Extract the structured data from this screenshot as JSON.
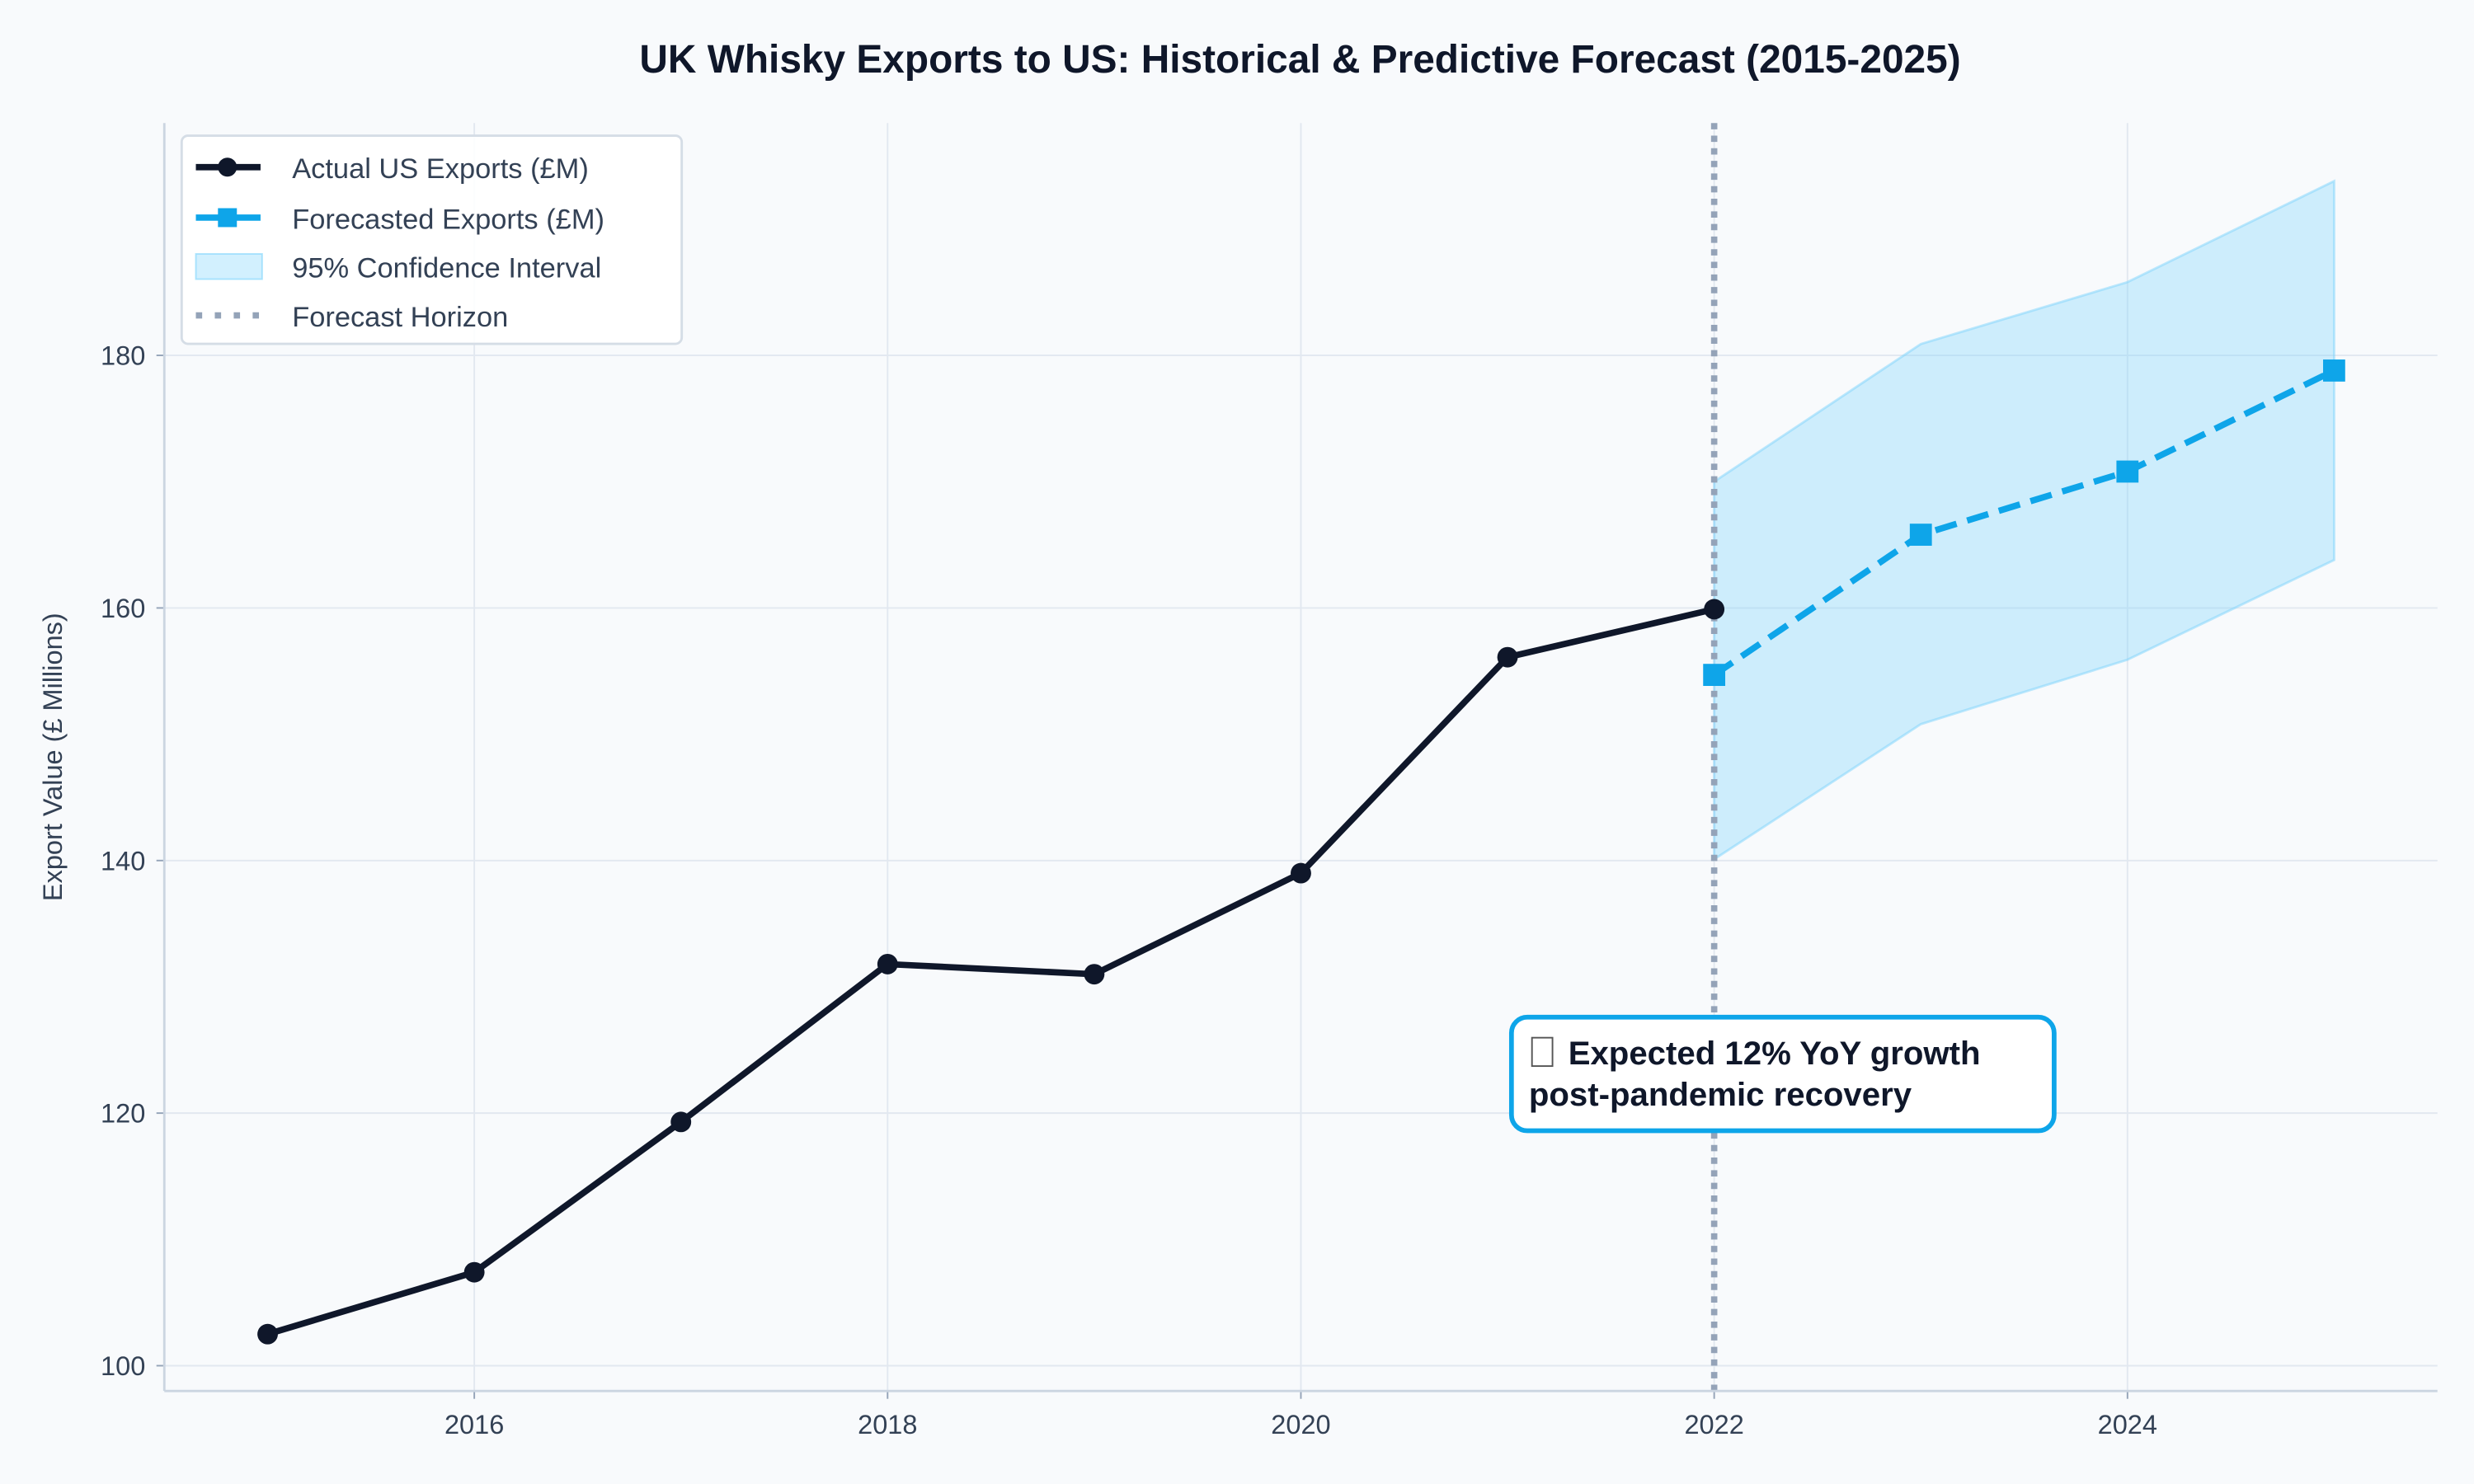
{
  "chart_data": {
    "type": "line",
    "title": "UK Whisky Exports to US: Historical & Predictive Forecast (2015-2025)",
    "xlabel": "",
    "ylabel": "Export Value (£ Millions)",
    "xlim": [
      2014.5,
      2025.5
    ],
    "ylim": [
      98,
      198.4
    ],
    "x_ticks": [
      2016,
      2018,
      2020,
      2022,
      2024
    ],
    "y_ticks": [
      100,
      120,
      140,
      160,
      180
    ],
    "grid": true,
    "legend_position": "top-left",
    "series": [
      {
        "name": "Actual US Exports (£M)",
        "color": "#0f172a",
        "marker": "circle",
        "style": "solid",
        "x": [
          2015,
          2016,
          2017,
          2018,
          2019,
          2020,
          2021,
          2022
        ],
        "y": [
          102.5,
          107.4,
          119.3,
          131.8,
          131.0,
          139.0,
          156.1,
          159.9
        ]
      },
      {
        "name": "Forecasted Exports (£M)",
        "color": "#0ea5e9",
        "marker": "square",
        "style": "dashed",
        "x": [
          2022,
          2023,
          2024,
          2025
        ],
        "y": [
          154.7,
          165.8,
          170.8,
          178.8
        ]
      }
    ],
    "confidence_interval": {
      "name": "95% Confidence Interval",
      "color": "#7dd3fc",
      "x": [
        2022,
        2023,
        2024,
        2025
      ],
      "upper": [
        170.0,
        180.9,
        185.8,
        193.8
      ],
      "lower": [
        140.1,
        150.8,
        155.9,
        163.8
      ]
    },
    "forecast_horizon": {
      "name": "Forecast Horizon",
      "x": 2022,
      "color": "#94a3b8"
    },
    "annotation": {
      "icon": "chart-icon",
      "line1": "Expected 12% YoY growth",
      "line2": "post-pandemic recovery",
      "border_color": "#0ea5e9"
    }
  }
}
